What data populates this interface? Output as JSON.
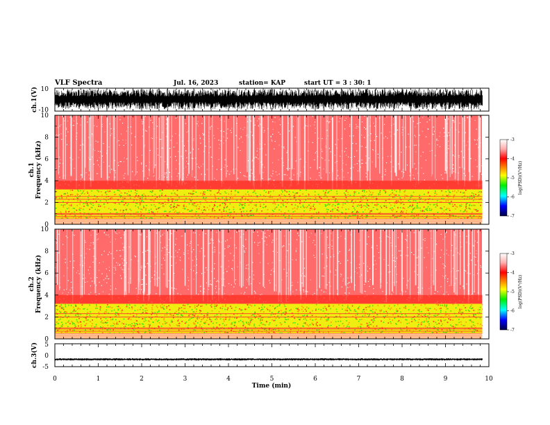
{
  "header": {
    "title": "VLF Spectra",
    "date": "Jul. 16, 2023",
    "station": "station= KAP",
    "start": "start UT = 3 : 30: 1"
  },
  "chart_data": [
    {
      "type": "line",
      "panel": "waveform-ch1",
      "ylabel": "ch.1(V)",
      "ylim": [
        -10,
        10
      ],
      "yticks": [
        "10",
        "-10"
      ],
      "xlim": [
        0,
        10
      ],
      "data_extent_min": 9.85,
      "amplitude_range": [
        -10,
        10
      ]
    },
    {
      "type": "heatmap",
      "panel": "spectrogram-ch1",
      "ylabel": "ch.1 Frequency (kHz)",
      "ylim": [
        0,
        10
      ],
      "yticks": [
        "0",
        "2",
        "4",
        "6",
        "8",
        "10"
      ],
      "xlim": [
        0,
        10
      ],
      "data_extent_min": 9.85,
      "colorbar": {
        "label": "log(PSD)(V²/Hz)",
        "range": [
          -7,
          -3
        ],
        "ticks": [
          "-3",
          "-4",
          "-5",
          "-6",
          "-7"
        ]
      },
      "band_khz": [
        0.5,
        3.2
      ],
      "lines_khz": [
        0.3,
        0.5,
        0.7,
        0.9,
        1.0,
        2.0,
        2.3,
        2.55
      ]
    },
    {
      "type": "heatmap",
      "panel": "spectrogram-ch2",
      "ylabel": "ch.2 Frequency (kHz)",
      "ylim": [
        0,
        10
      ],
      "yticks": [
        "0",
        "2",
        "4",
        "6",
        "8",
        "10"
      ],
      "xlim": [
        0,
        10
      ],
      "data_extent_min": 9.85,
      "colorbar": {
        "label": "log(PSD)(V²/Hz)",
        "range": [
          -7,
          -3
        ],
        "ticks": [
          "-3",
          "-4",
          "-5",
          "-6",
          "-7"
        ]
      },
      "band_khz": [
        0.5,
        3.2
      ],
      "lines_khz": [
        0.3,
        0.5,
        0.7,
        0.9,
        1.0,
        2.0,
        2.3
      ]
    },
    {
      "type": "line",
      "panel": "waveform-ch3",
      "ylabel": "ch.3(V)",
      "ylim": [
        -5,
        5
      ],
      "yticks": [
        "5",
        "0",
        "-5"
      ],
      "xlim": [
        0,
        10
      ],
      "xlabel": "Time (min)",
      "xticks": [
        "0",
        "1",
        "2",
        "3",
        "4",
        "5",
        "6",
        "7",
        "8",
        "9",
        "10"
      ],
      "data_extent_min": 9.85,
      "amplitude_range": [
        -2.3,
        -1.3
      ]
    }
  ]
}
